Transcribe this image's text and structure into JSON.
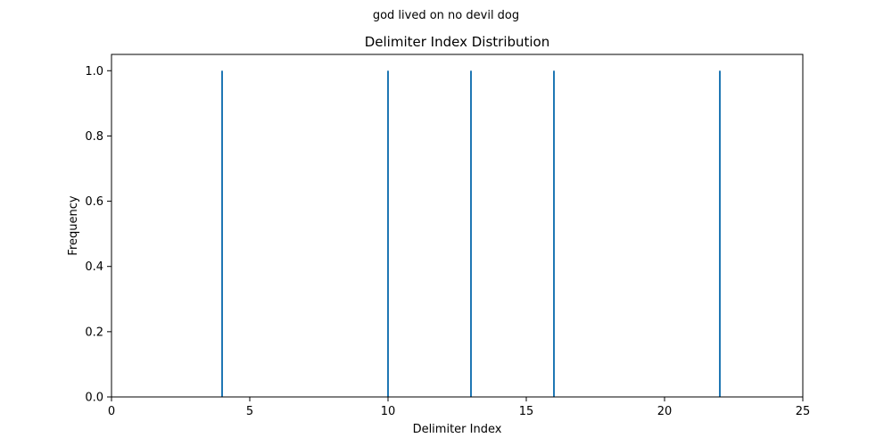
{
  "chart_data": {
    "type": "bar",
    "suptitle": "god lived on no devil dog",
    "title": "Delimiter Index Distribution",
    "xlabel": "Delimiter Index",
    "ylabel": "Frequency",
    "xlim": [
      0,
      25
    ],
    "ylim": [
      0,
      1.05
    ],
    "xticks": [
      0,
      5,
      10,
      15,
      20,
      25
    ],
    "yticks": [
      0.0,
      0.2,
      0.4,
      0.6,
      0.8,
      1.0
    ],
    "xtick_labels": [
      "0",
      "5",
      "10",
      "15",
      "20",
      "25"
    ],
    "ytick_labels": [
      "0.0",
      "0.2",
      "0.4",
      "0.6",
      "0.8",
      "1.0"
    ],
    "grid": false,
    "bar_color": "#1f77b4",
    "x": [
      4,
      10,
      13,
      16,
      22
    ],
    "values": [
      1,
      1,
      1,
      1,
      1
    ]
  }
}
